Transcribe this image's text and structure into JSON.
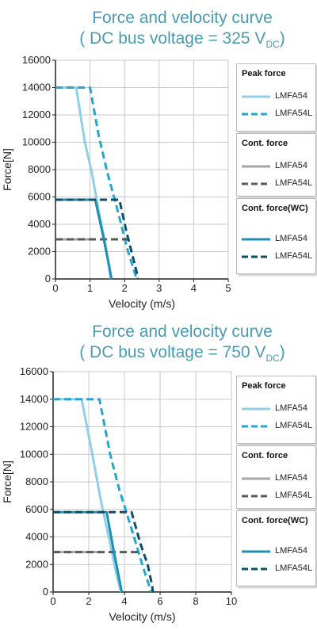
{
  "colors": {
    "title": "#4a9bb0",
    "peak_lmfa54": "#8fd0e6",
    "peak_lmfa54l": "#25a6cf",
    "cont_lmfa54": "#a6a6a6",
    "cont_lmfa54l": "#5a5a5a",
    "wc_lmfa54": "#1c8fb3",
    "wc_lmfa54l": "#0d4f68",
    "grid": "#c8c8c8"
  },
  "legend": {
    "groups": [
      {
        "header": "Peak force",
        "items": [
          "LMFA54",
          "LMFA54L"
        ]
      },
      {
        "header": "Cont. force",
        "items": [
          "LMFA54",
          "LMFA54L"
        ]
      },
      {
        "header": "Cont. force(WC)",
        "items": [
          "LMFA54",
          "LMFA54L"
        ]
      }
    ]
  },
  "chart_data": [
    {
      "type": "line",
      "title_line1": "Force and velocity curve",
      "title_line2_prefix": "( DC bus voltage = 325 V",
      "title_line2_sub": "DC",
      "title_line2_suffix": ")",
      "xlabel": "Velocity (m/s)",
      "ylabel": "Force[N]",
      "xlim": [
        0,
        5
      ],
      "ylim": [
        0,
        16000
      ],
      "xticks": [
        0,
        1,
        2,
        3,
        4,
        5
      ],
      "yticks": [
        0,
        2000,
        4000,
        6000,
        8000,
        10000,
        12000,
        14000,
        16000
      ],
      "grid": true,
      "legend_position": "right",
      "series": [
        {
          "name": "Peak force LMFA54",
          "dash": "solid",
          "color_key": "peak_lmfa54",
          "x": [
            0,
            0.6,
            0.85,
            1.05,
            1.25,
            1.45,
            1.6
          ],
          "y": [
            14000,
            14000,
            10000,
            7800,
            5000,
            2500,
            0
          ]
        },
        {
          "name": "Peak force LMFA54L",
          "dash": "dashed",
          "color_key": "peak_lmfa54l",
          "x": [
            0,
            1.0,
            1.25,
            1.5,
            1.8,
            2.1,
            2.35
          ],
          "y": [
            14000,
            14000,
            10500,
            7800,
            5000,
            2000,
            0
          ]
        },
        {
          "name": "Cont. force LMFA54",
          "dash": "solid",
          "color_key": "cont_lmfa54",
          "x": [
            0,
            1.0
          ],
          "y": [
            2900,
            2900
          ]
        },
        {
          "name": "Cont. force LMFA54L",
          "dash": "dashed",
          "color_key": "cont_lmfa54l",
          "x": [
            0,
            2.15
          ],
          "y": [
            2900,
            2900
          ]
        },
        {
          "name": "Cont. force(WC) LMFA54",
          "dash": "solid",
          "color_key": "wc_lmfa54",
          "x": [
            0,
            1.15,
            1.35,
            1.55,
            1.62
          ],
          "y": [
            5800,
            5800,
            3500,
            1000,
            0
          ]
        },
        {
          "name": "Cont. force(WC) LMFA54L",
          "dash": "dashed",
          "color_key": "wc_lmfa54l",
          "x": [
            0,
            1.85,
            2.05,
            2.2,
            2.35,
            2.38
          ],
          "y": [
            5800,
            5800,
            3500,
            2000,
            500,
            0
          ]
        }
      ]
    },
    {
      "type": "line",
      "title_line1": "Force and velocity curve",
      "title_line2_prefix": "( DC bus voltage = 750 V",
      "title_line2_sub": "DC",
      "title_line2_suffix": ")",
      "xlabel": "Velocity (m/s)",
      "ylabel": "Force[N]",
      "xlim": [
        0,
        10
      ],
      "ylim": [
        0,
        16000
      ],
      "xticks": [
        0,
        2,
        4,
        6,
        8,
        10
      ],
      "yticks": [
        0,
        2000,
        4000,
        6000,
        8000,
        10000,
        12000,
        14000,
        16000
      ],
      "grid": true,
      "legend_position": "right",
      "series": [
        {
          "name": "Peak force LMFA54",
          "dash": "solid",
          "color_key": "peak_lmfa54",
          "x": [
            0,
            1.6,
            2.2,
            2.7,
            3.2,
            3.6,
            3.8
          ],
          "y": [
            14000,
            14000,
            10000,
            6500,
            3500,
            1000,
            0
          ]
        },
        {
          "name": "Peak force LMFA54L",
          "dash": "dashed",
          "color_key": "peak_lmfa54l",
          "x": [
            0,
            2.6,
            3.2,
            3.7,
            4.3,
            5.0,
            5.5
          ],
          "y": [
            14000,
            14000,
            10000,
            7500,
            5000,
            2000,
            0
          ]
        },
        {
          "name": "Cont. force LMFA54",
          "dash": "solid",
          "color_key": "cont_lmfa54",
          "x": [
            0,
            2.8
          ],
          "y": [
            2900,
            2900
          ]
        },
        {
          "name": "Cont. force LMFA54L",
          "dash": "dashed",
          "color_key": "cont_lmfa54l",
          "x": [
            0,
            5.0
          ],
          "y": [
            2900,
            2900
          ]
        },
        {
          "name": "Cont. force(WC) LMFA54",
          "dash": "solid",
          "color_key": "wc_lmfa54",
          "x": [
            0,
            3.0,
            3.4,
            3.7,
            3.85
          ],
          "y": [
            5800,
            5800,
            3000,
            1000,
            0
          ]
        },
        {
          "name": "Cont. force(WC) LMFA54L",
          "dash": "dashed",
          "color_key": "wc_lmfa54l",
          "x": [
            0,
            4.4,
            4.9,
            5.3,
            5.55,
            5.6
          ],
          "y": [
            5800,
            5800,
            3500,
            2000,
            500,
            0
          ]
        }
      ]
    }
  ]
}
